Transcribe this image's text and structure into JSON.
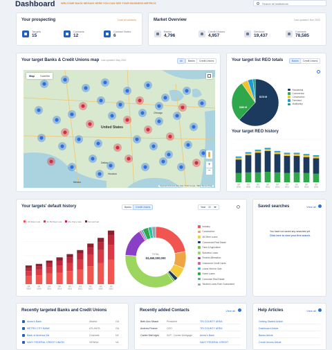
{
  "header": {
    "title": "Dashboard",
    "welcome": "WELCOME BACK MEGAN! HERE YOU CAN SEE YOUR BUSINESS METRICS",
    "search_placeholder": "Search all institutions"
  },
  "prospecting": {
    "title": "Your prospecting",
    "link": "Load all contacts",
    "stats": [
      {
        "label": "Targets",
        "value": "15"
      },
      {
        "label": "Contacts",
        "value": "12"
      },
      {
        "label": "Contact Notes",
        "value": "6"
      }
    ]
  },
  "market": {
    "title": "Market Overview",
    "date": "Last updated: Nov 2022",
    "stats": [
      {
        "label": "Banks",
        "value": "4,796"
      },
      {
        "label": "Credit Unions",
        "value": "4,957"
      },
      {
        "label": "Services",
        "value": "19,437"
      },
      {
        "label": "Contacts",
        "value": "78,585"
      }
    ]
  },
  "map": {
    "title": "Your target Banks & Credit Unions map",
    "date": "Last updated: May 2022",
    "filters": [
      "All",
      "Banks",
      "Credit Unions"
    ],
    "type_tabs": [
      "Map",
      "Satellite"
    ],
    "country_label": "United States",
    "cities": [
      "Dallas",
      "Houston",
      "Chicago",
      "Mexico"
    ],
    "attribution": "Keyboard shortcuts  Map data ©2022 Google, INEGI  Terms of Use"
  },
  "reo_totals": {
    "title": "Your target list REO totals",
    "toggle": [
      "Banks",
      "Credit Unions"
    ],
    "slice_labels": [
      "$384 M",
      "$176 M"
    ],
    "legend": [
      "Residential",
      "Commercial",
      "Construction",
      "Farmland",
      "Multifamily"
    ],
    "colors": [
      "#1c3a5e",
      "#2ea84a",
      "#f0c330",
      "#1a9ad6",
      "#16a085"
    ]
  },
  "reo_history": {
    "title": "Your target REO history",
    "x_labels": [
      "Q3 2020",
      "Q4 2020",
      "Q1 2021",
      "Q2 2021",
      "Q3 2021",
      "Q4 2021",
      "Q1 2022",
      "Q2 2022",
      "Q3 2022"
    ]
  },
  "default_history": {
    "title": "Your targets' default history",
    "filters": [
      "Banks",
      "Credit Unions"
    ],
    "period_label": "Year",
    "period_value": "30",
    "series_legend": [
      "1-30 Days Late",
      "31-89 Days Late",
      "90+ Days Late",
      "Non-accrual"
    ],
    "x_labels": [
      "Q3 2020",
      "Q4 2020",
      "Q1 2021",
      "Q2 2021",
      "Q3 2021",
      "Q4 2021",
      "Q1 2022",
      "Q2 2022",
      "Q3 2022"
    ],
    "donut_total_label": "TOTAL",
    "donut_total_value": "$3,460,000,000",
    "legend": [
      "Industry",
      "Construction",
      "All Other Loans",
      "Commercial Real Estate",
      "Farm & Agriculture",
      "Business Loans",
      "Flexible Affirmation",
      "Unsecured Credit Cards",
      "Loans Held for Sale",
      "Home Loans",
      "Consumer Real Estate",
      "Student Loans Even Guaranteed"
    ],
    "legend_colors": [
      "#f0564f",
      "#f0a545",
      "#f2cc3b",
      "#1c3a5e",
      "#6fbf3a",
      "#9dd65e",
      "#8a3fc7",
      "#e05a9c",
      "#4aa3df",
      "#2ea84a",
      "#26c0a3",
      "#9aa5b1"
    ]
  },
  "saved_searches": {
    "title": "Saved searches",
    "view_all": "View all",
    "empty": "You have not saved any searches yet.",
    "cta": "Click here to view your first search."
  },
  "recent_targets": {
    "title": "Recently targeted Banks and Credit Unions",
    "rows": [
      {
        "name": "Ames's Bank",
        "city": "Atlanta",
        "state": "GA"
      },
      {
        "name": "METRO CITY BANK",
        "city": "ATLANTA",
        "state": "GA"
      },
      {
        "name": "Bank of America NA",
        "city": "Charlotte",
        "state": "NC"
      },
      {
        "name": "NAVY FEDERAL CREDIT UNION",
        "city": "VIENNA",
        "state": "VA"
      }
    ]
  },
  "recent_contacts": {
    "title": "Recently added Contacts",
    "view_all": "View all",
    "rows": [
      {
        "name": "Beth Ann Straub",
        "role": "President",
        "org": "TRI COUNTY AREA"
      },
      {
        "name": "Andrew Pearce",
        "role": "CEO",
        "org": "TRI COUNTY AREA"
      },
      {
        "name": "Carlee McKnight",
        "role": "AVP - Center Mortgage",
        "org": "Ames's Bank"
      },
      {
        "name": "",
        "role": "",
        "org": "NAVY FEDERAL CREDIT"
      }
    ]
  },
  "help": {
    "title": "Help Articles",
    "view_all": "View all",
    "links": [
      "Getting Started Article",
      "Dashboard Article",
      "Banks Article",
      "Credit Unions Article"
    ]
  },
  "chart_data": [
    {
      "type": "pie",
      "title": "Your target list REO totals",
      "categories": [
        "Residential",
        "Commercial",
        "Construction",
        "Farmland",
        "Multifamily"
      ],
      "values": [
        384,
        176,
        28,
        22,
        10
      ]
    },
    {
      "type": "bar",
      "title": "Your target REO history",
      "categories": [
        "Q3 2020",
        "Q4 2020",
        "Q1 2021",
        "Q2 2021",
        "Q3 2021",
        "Q4 2021",
        "Q1 2022",
        "Q2 2022",
        "Q3 2022"
      ],
      "series": [
        {
          "values": [
            15,
            16,
            16,
            17,
            16,
            15,
            16,
            15,
            14
          ]
        },
        {
          "values": [
            22,
            28,
            32,
            34,
            30,
            28,
            27,
            26,
            25
          ]
        },
        {
          "values": [
            3,
            3,
            3,
            3,
            3,
            3,
            3,
            3,
            3
          ]
        },
        {
          "values": [
            2,
            2,
            2,
            2,
            2,
            2,
            2,
            2,
            2
          ]
        }
      ],
      "ylim": [
        0,
        70
      ]
    },
    {
      "type": "bar",
      "title": "Your targets' default history",
      "categories": [
        "Q3 2020",
        "Q4 2020",
        "Q1 2021",
        "Q2 2021",
        "Q3 2021",
        "Q4 2021",
        "Q1 2022",
        "Q2 2022",
        "Q3 2022"
      ],
      "series": [
        {
          "name": "1-30 Days Late",
          "values": [
            10,
            11,
            13,
            14,
            16,
            18,
            22,
            26,
            30
          ]
        },
        {
          "name": "31-89 Days Late",
          "values": [
            6,
            7,
            8,
            9,
            10,
            12,
            14,
            16,
            18
          ]
        },
        {
          "name": "90+ Days Late",
          "values": [
            4,
            4,
            5,
            6,
            7,
            8,
            9,
            10,
            12
          ]
        },
        {
          "name": "Non-accrual",
          "values": [
            3,
            3,
            3,
            4,
            4,
            4,
            5,
            5,
            6
          ]
        }
      ],
      "ylim": [
        0,
        70
      ]
    },
    {
      "type": "pie",
      "title": "TOTAL $3,460,000,000",
      "categories": [
        "Industry",
        "Construction",
        "All Other Loans",
        "Commercial Real Estate",
        "Farm & Agriculture",
        "Business Loans",
        "Flexible Affirmation",
        "Unsecured Credit Cards",
        "Loans Held for Sale",
        "Home Loans",
        "Consumer Real Estate",
        "Student Loans Even Guaranteed"
      ],
      "values": [
        22,
        9,
        6,
        2,
        1,
        36,
        15,
        1,
        1,
        3,
        2,
        2
      ]
    }
  ]
}
